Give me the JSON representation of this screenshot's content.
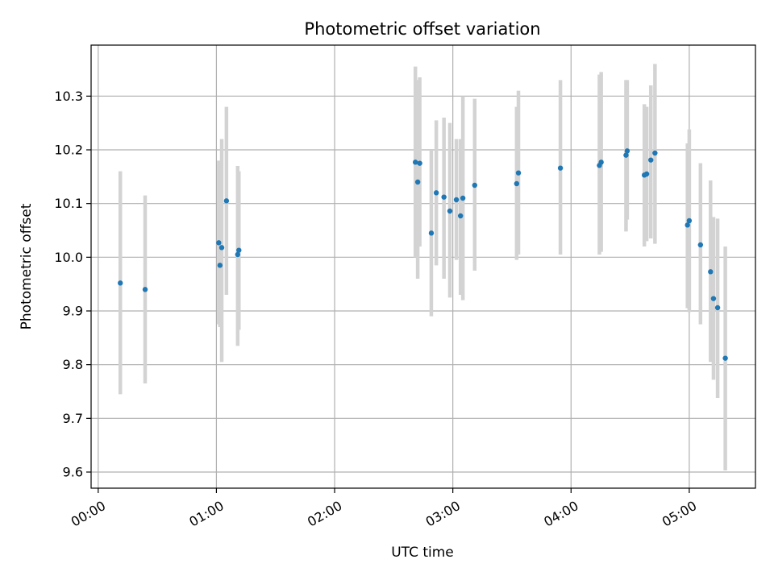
{
  "chart_data": {
    "type": "scatter",
    "title": "Photometric offset variation",
    "xlabel": "UTC time",
    "ylabel": "Photometric offset",
    "x_unit": "hours",
    "xlim": [
      -0.06,
      5.56
    ],
    "ylim": [
      9.57,
      10.395
    ],
    "grid": true,
    "x_ticks": [
      {
        "value": 0,
        "label": "00:00"
      },
      {
        "value": 1,
        "label": "01:00"
      },
      {
        "value": 2,
        "label": "02:00"
      },
      {
        "value": 3,
        "label": "03:00"
      },
      {
        "value": 4,
        "label": "04:00"
      },
      {
        "value": 5,
        "label": "05:00"
      }
    ],
    "y_ticks": [
      {
        "value": 9.6,
        "label": "9.6"
      },
      {
        "value": 9.7,
        "label": "9.7"
      },
      {
        "value": 9.8,
        "label": "9.8"
      },
      {
        "value": 9.9,
        "label": "9.9"
      },
      {
        "value": 10.0,
        "label": "10.0"
      },
      {
        "value": 10.1,
        "label": "10.1"
      },
      {
        "value": 10.2,
        "label": "10.2"
      },
      {
        "value": 10.3,
        "label": "10.3"
      }
    ],
    "colors": {
      "point": "#1f77b4",
      "errorbar": "#d3d3d3",
      "grid": "#b0b0b0",
      "axes": "#000000"
    },
    "points": [
      {
        "x": 0.187,
        "y": 9.952,
        "lo": 9.745,
        "hi": 10.16
      },
      {
        "x": 0.397,
        "y": 9.94,
        "lo": 9.765,
        "hi": 10.115
      },
      {
        "x": 1.02,
        "y": 10.027,
        "lo": 9.875,
        "hi": 10.18
      },
      {
        "x": 1.03,
        "y": 9.985,
        "lo": 9.87,
        "hi": 10.1
      },
      {
        "x": 1.045,
        "y": 10.018,
        "lo": 9.805,
        "hi": 10.22
      },
      {
        "x": 1.085,
        "y": 10.105,
        "lo": 9.93,
        "hi": 10.28
      },
      {
        "x": 1.18,
        "y": 10.005,
        "lo": 9.835,
        "hi": 10.17
      },
      {
        "x": 1.19,
        "y": 10.013,
        "lo": 9.865,
        "hi": 10.16
      },
      {
        "x": 2.683,
        "y": 10.177,
        "lo": 10.0,
        "hi": 10.355
      },
      {
        "x": 2.703,
        "y": 10.14,
        "lo": 9.96,
        "hi": 10.33
      },
      {
        "x": 2.72,
        "y": 10.175,
        "lo": 10.02,
        "hi": 10.335
      },
      {
        "x": 2.818,
        "y": 10.045,
        "lo": 9.89,
        "hi": 10.2
      },
      {
        "x": 2.86,
        "y": 10.12,
        "lo": 9.985,
        "hi": 10.255
      },
      {
        "x": 2.925,
        "y": 10.112,
        "lo": 9.96,
        "hi": 10.26
      },
      {
        "x": 2.975,
        "y": 10.086,
        "lo": 9.925,
        "hi": 10.25
      },
      {
        "x": 3.03,
        "y": 10.107,
        "lo": 9.995,
        "hi": 10.22
      },
      {
        "x": 3.065,
        "y": 10.077,
        "lo": 9.93,
        "hi": 10.22
      },
      {
        "x": 3.085,
        "y": 10.11,
        "lo": 9.92,
        "hi": 10.3
      },
      {
        "x": 3.185,
        "y": 10.134,
        "lo": 9.975,
        "hi": 10.295
      },
      {
        "x": 3.54,
        "y": 10.137,
        "lo": 9.995,
        "hi": 10.28
      },
      {
        "x": 3.555,
        "y": 10.157,
        "lo": 10.005,
        "hi": 10.31
      },
      {
        "x": 3.91,
        "y": 10.166,
        "lo": 10.005,
        "hi": 10.33
      },
      {
        "x": 4.24,
        "y": 10.171,
        "lo": 10.005,
        "hi": 10.34
      },
      {
        "x": 4.255,
        "y": 10.177,
        "lo": 10.01,
        "hi": 10.345
      },
      {
        "x": 4.465,
        "y": 10.19,
        "lo": 10.048,
        "hi": 10.33
      },
      {
        "x": 4.475,
        "y": 10.198,
        "lo": 10.07,
        "hi": 10.33
      },
      {
        "x": 4.62,
        "y": 10.153,
        "lo": 10.02,
        "hi": 10.285
      },
      {
        "x": 4.64,
        "y": 10.155,
        "lo": 10.03,
        "hi": 10.28
      },
      {
        "x": 4.675,
        "y": 10.181,
        "lo": 10.035,
        "hi": 10.32
      },
      {
        "x": 4.71,
        "y": 10.194,
        "lo": 10.025,
        "hi": 10.36
      },
      {
        "x": 4.985,
        "y": 10.06,
        "lo": 9.905,
        "hi": 10.212
      },
      {
        "x": 5.0,
        "y": 10.068,
        "lo": 9.898,
        "hi": 10.238
      },
      {
        "x": 5.095,
        "y": 10.023,
        "lo": 9.875,
        "hi": 10.175
      },
      {
        "x": 5.18,
        "y": 9.973,
        "lo": 9.805,
        "hi": 10.143
      },
      {
        "x": 5.205,
        "y": 9.923,
        "lo": 9.772,
        "hi": 10.075
      },
      {
        "x": 5.24,
        "y": 9.906,
        "lo": 9.738,
        "hi": 10.072
      },
      {
        "x": 5.305,
        "y": 9.812,
        "lo": 9.603,
        "hi": 10.02
      }
    ]
  }
}
